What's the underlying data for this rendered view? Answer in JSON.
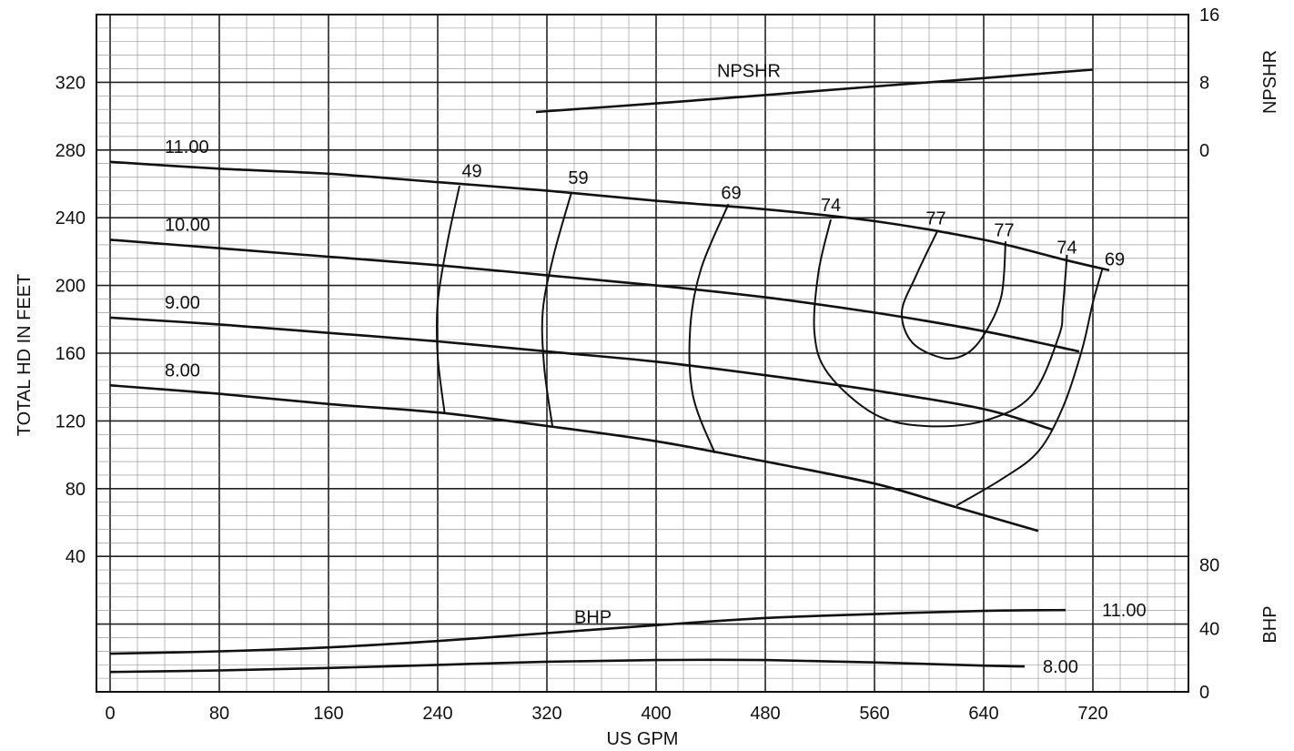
{
  "chart_data": {
    "type": "line",
    "title": "",
    "xlabel": "US GPM",
    "ylabel_left": "TOTAL HD IN FEET",
    "ylabel_right_top": "NPSHR",
    "ylabel_right_bottom": "BHP",
    "xlim": [
      -10,
      790
    ],
    "ylim": [
      -40,
      360
    ],
    "npshr_axis": {
      "range": [
        0,
        16
      ],
      "ticks": [
        "0",
        "8",
        "16"
      ]
    },
    "bhp_axis": {
      "range": [
        0,
        80
      ],
      "ticks": [
        "0",
        "40",
        "80"
      ]
    },
    "x_ticks": [
      "0",
      "80",
      "160",
      "240",
      "320",
      "400",
      "480",
      "560",
      "640",
      "720"
    ],
    "y_ticks": [
      "40",
      "80",
      "120",
      "160",
      "200",
      "240",
      "280",
      "320"
    ],
    "grid": true,
    "head_curves": [
      {
        "label": "11.00",
        "points": [
          [
            0,
            273
          ],
          [
            80,
            269
          ],
          [
            160,
            266
          ],
          [
            240,
            261
          ],
          [
            320,
            256
          ],
          [
            400,
            250
          ],
          [
            480,
            245
          ],
          [
            560,
            238
          ],
          [
            640,
            227
          ],
          [
            700,
            215
          ],
          [
            732,
            209
          ]
        ]
      },
      {
        "label": "10.00",
        "points": [
          [
            0,
            227
          ],
          [
            80,
            222
          ],
          [
            160,
            217
          ],
          [
            240,
            212
          ],
          [
            320,
            206
          ],
          [
            400,
            200
          ],
          [
            480,
            193
          ],
          [
            560,
            184
          ],
          [
            640,
            173
          ],
          [
            710,
            161
          ]
        ]
      },
      {
        "label": "9.00",
        "points": [
          [
            0,
            181
          ],
          [
            80,
            177
          ],
          [
            160,
            172
          ],
          [
            240,
            167
          ],
          [
            320,
            161
          ],
          [
            400,
            155
          ],
          [
            480,
            147
          ],
          [
            560,
            138
          ],
          [
            640,
            127
          ],
          [
            690,
            115
          ]
        ]
      },
      {
        "label": "8.00",
        "points": [
          [
            0,
            141
          ],
          [
            80,
            136
          ],
          [
            160,
            130
          ],
          [
            240,
            125
          ],
          [
            320,
            117
          ],
          [
            400,
            108
          ],
          [
            480,
            96
          ],
          [
            560,
            83
          ],
          [
            620,
            69
          ],
          [
            680,
            55
          ]
        ]
      }
    ],
    "efficiency_curves": [
      {
        "label": "49",
        "points": [
          [
            256,
            259
          ],
          [
            247,
            225
          ],
          [
            240,
            190
          ],
          [
            240,
            158
          ],
          [
            245,
            125
          ]
        ]
      },
      {
        "label": "59",
        "points": [
          [
            338,
            255
          ],
          [
            325,
            218
          ],
          [
            317,
            185
          ],
          [
            318,
            152
          ],
          [
            324,
            117
          ]
        ]
      },
      {
        "label": "69",
        "points": [
          [
            453,
            248
          ],
          [
            433,
            210
          ],
          [
            425,
            175
          ],
          [
            427,
            135
          ],
          [
            443,
            101
          ]
        ]
      },
      {
        "label": "74",
        "points": [
          [
            528,
            239
          ],
          [
            519,
            208
          ],
          [
            516,
            172
          ],
          [
            526,
            148
          ],
          [
            560,
            124
          ],
          [
            597,
            117
          ],
          [
            640,
            120
          ],
          [
            675,
            135
          ],
          [
            695,
            170
          ],
          [
            698,
            187
          ],
          [
            701,
            218
          ]
        ]
      },
      {
        "label": "77",
        "points": [
          [
            606,
            232
          ],
          [
            590,
            205
          ],
          [
            580,
            184
          ],
          [
            588,
            166
          ],
          [
            611,
            157
          ],
          [
            628,
            160
          ],
          [
            641,
            172
          ],
          [
            653,
            194
          ],
          [
            656,
            226
          ]
        ]
      },
      {
        "label": "69",
        "points": [
          [
            727,
            210
          ],
          [
            720,
            190
          ],
          [
            712,
            162
          ],
          [
            698,
            128
          ],
          [
            680,
            102
          ],
          [
            654,
            86
          ],
          [
            620,
            70
          ]
        ]
      }
    ],
    "efficiency_labels": [
      {
        "text": "49",
        "x": 265,
        "y": 264
      },
      {
        "text": "59",
        "x": 343,
        "y": 260
      },
      {
        "text": "69",
        "x": 455,
        "y": 251
      },
      {
        "text": "74",
        "x": 528,
        "y": 244
      },
      {
        "text": "77",
        "x": 605,
        "y": 236
      },
      {
        "text": "77",
        "x": 655,
        "y": 229
      },
      {
        "text": "74",
        "x": 701,
        "y": 219
      },
      {
        "text": "69",
        "x": 736,
        "y": 212
      }
    ],
    "npshr": {
      "label": "NPSHR",
      "points": [
        [
          312,
          4.5
        ],
        [
          400,
          5.5
        ],
        [
          480,
          6.5
        ],
        [
          560,
          7.5
        ],
        [
          640,
          8.5
        ],
        [
          720,
          9.5
        ]
      ]
    },
    "bhp_curves": [
      {
        "label": "11.00",
        "points": [
          [
            0,
            24
          ],
          [
            80,
            25.5
          ],
          [
            160,
            28
          ],
          [
            240,
            32
          ],
          [
            320,
            37
          ],
          [
            400,
            42
          ],
          [
            480,
            46.5
          ],
          [
            560,
            49
          ],
          [
            640,
            51
          ],
          [
            700,
            51.5
          ]
        ]
      },
      {
        "label": "8.00",
        "points": [
          [
            0,
            12.5
          ],
          [
            80,
            13.5
          ],
          [
            160,
            15
          ],
          [
            240,
            17
          ],
          [
            320,
            19
          ],
          [
            400,
            20
          ],
          [
            480,
            20
          ],
          [
            560,
            18.5
          ],
          [
            640,
            16.5
          ],
          [
            670,
            16
          ]
        ]
      }
    ],
    "bhp_text": "BHP"
  }
}
